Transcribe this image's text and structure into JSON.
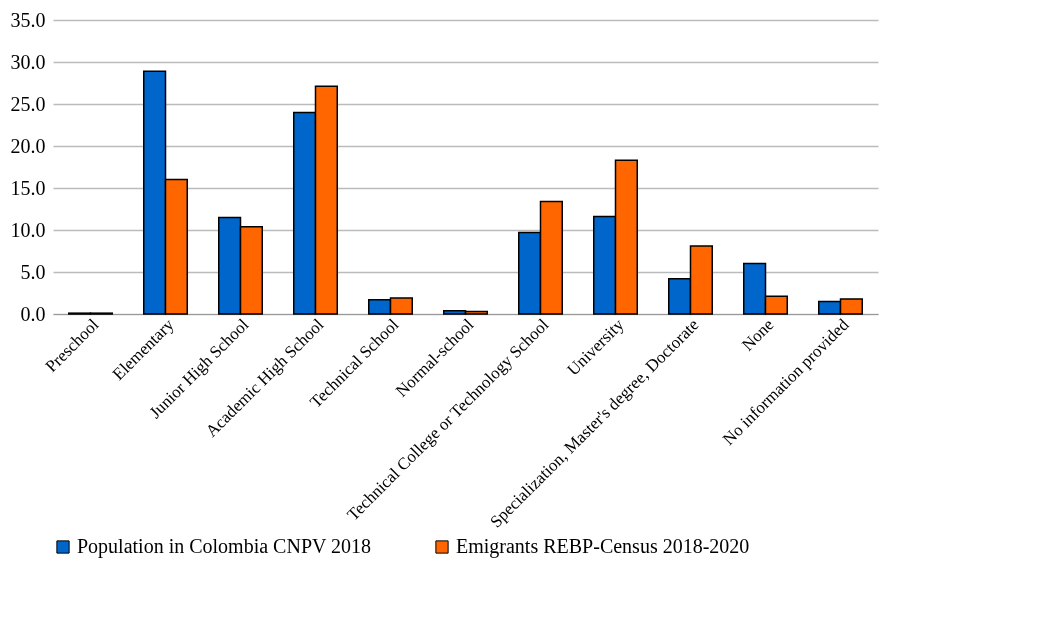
{
  "chart_data": {
    "type": "bar",
    "categories": [
      "Preschool",
      "Elementary",
      "Junior High School",
      "Academic High School",
      "Technical School",
      "Normal-school",
      "Technical College or Technology School",
      "University",
      "Specialization, Master's degree, Doctorate",
      "None",
      "No information provided"
    ],
    "series": [
      {
        "name": "Population in Colombia CNPV 2018",
        "color": "#0066cc",
        "values": [
          0.1,
          28.9,
          11.5,
          24.0,
          1.7,
          0.4,
          9.7,
          11.6,
          4.2,
          6.0,
          1.5
        ]
      },
      {
        "name": "Emigrants REBP-Census 2018-2020",
        "color": "#ff6600",
        "values": [
          0.1,
          16.0,
          10.4,
          27.1,
          1.9,
          0.3,
          13.4,
          18.3,
          8.1,
          2.1,
          1.8
        ]
      }
    ],
    "ylim": [
      0,
      35
    ],
    "yticks": [
      {
        "value": 0,
        "label": "0.0"
      },
      {
        "value": 5,
        "label": "5.0"
      },
      {
        "value": 10,
        "label": "10.0"
      },
      {
        "value": 15,
        "label": "15.0"
      },
      {
        "value": 20,
        "label": "20.0"
      },
      {
        "value": 25,
        "label": "25.0"
      },
      {
        "value": 30,
        "label": "30.0"
      },
      {
        "value": 35,
        "label": "35.0"
      }
    ],
    "grid": "y",
    "legend": "bottom"
  }
}
